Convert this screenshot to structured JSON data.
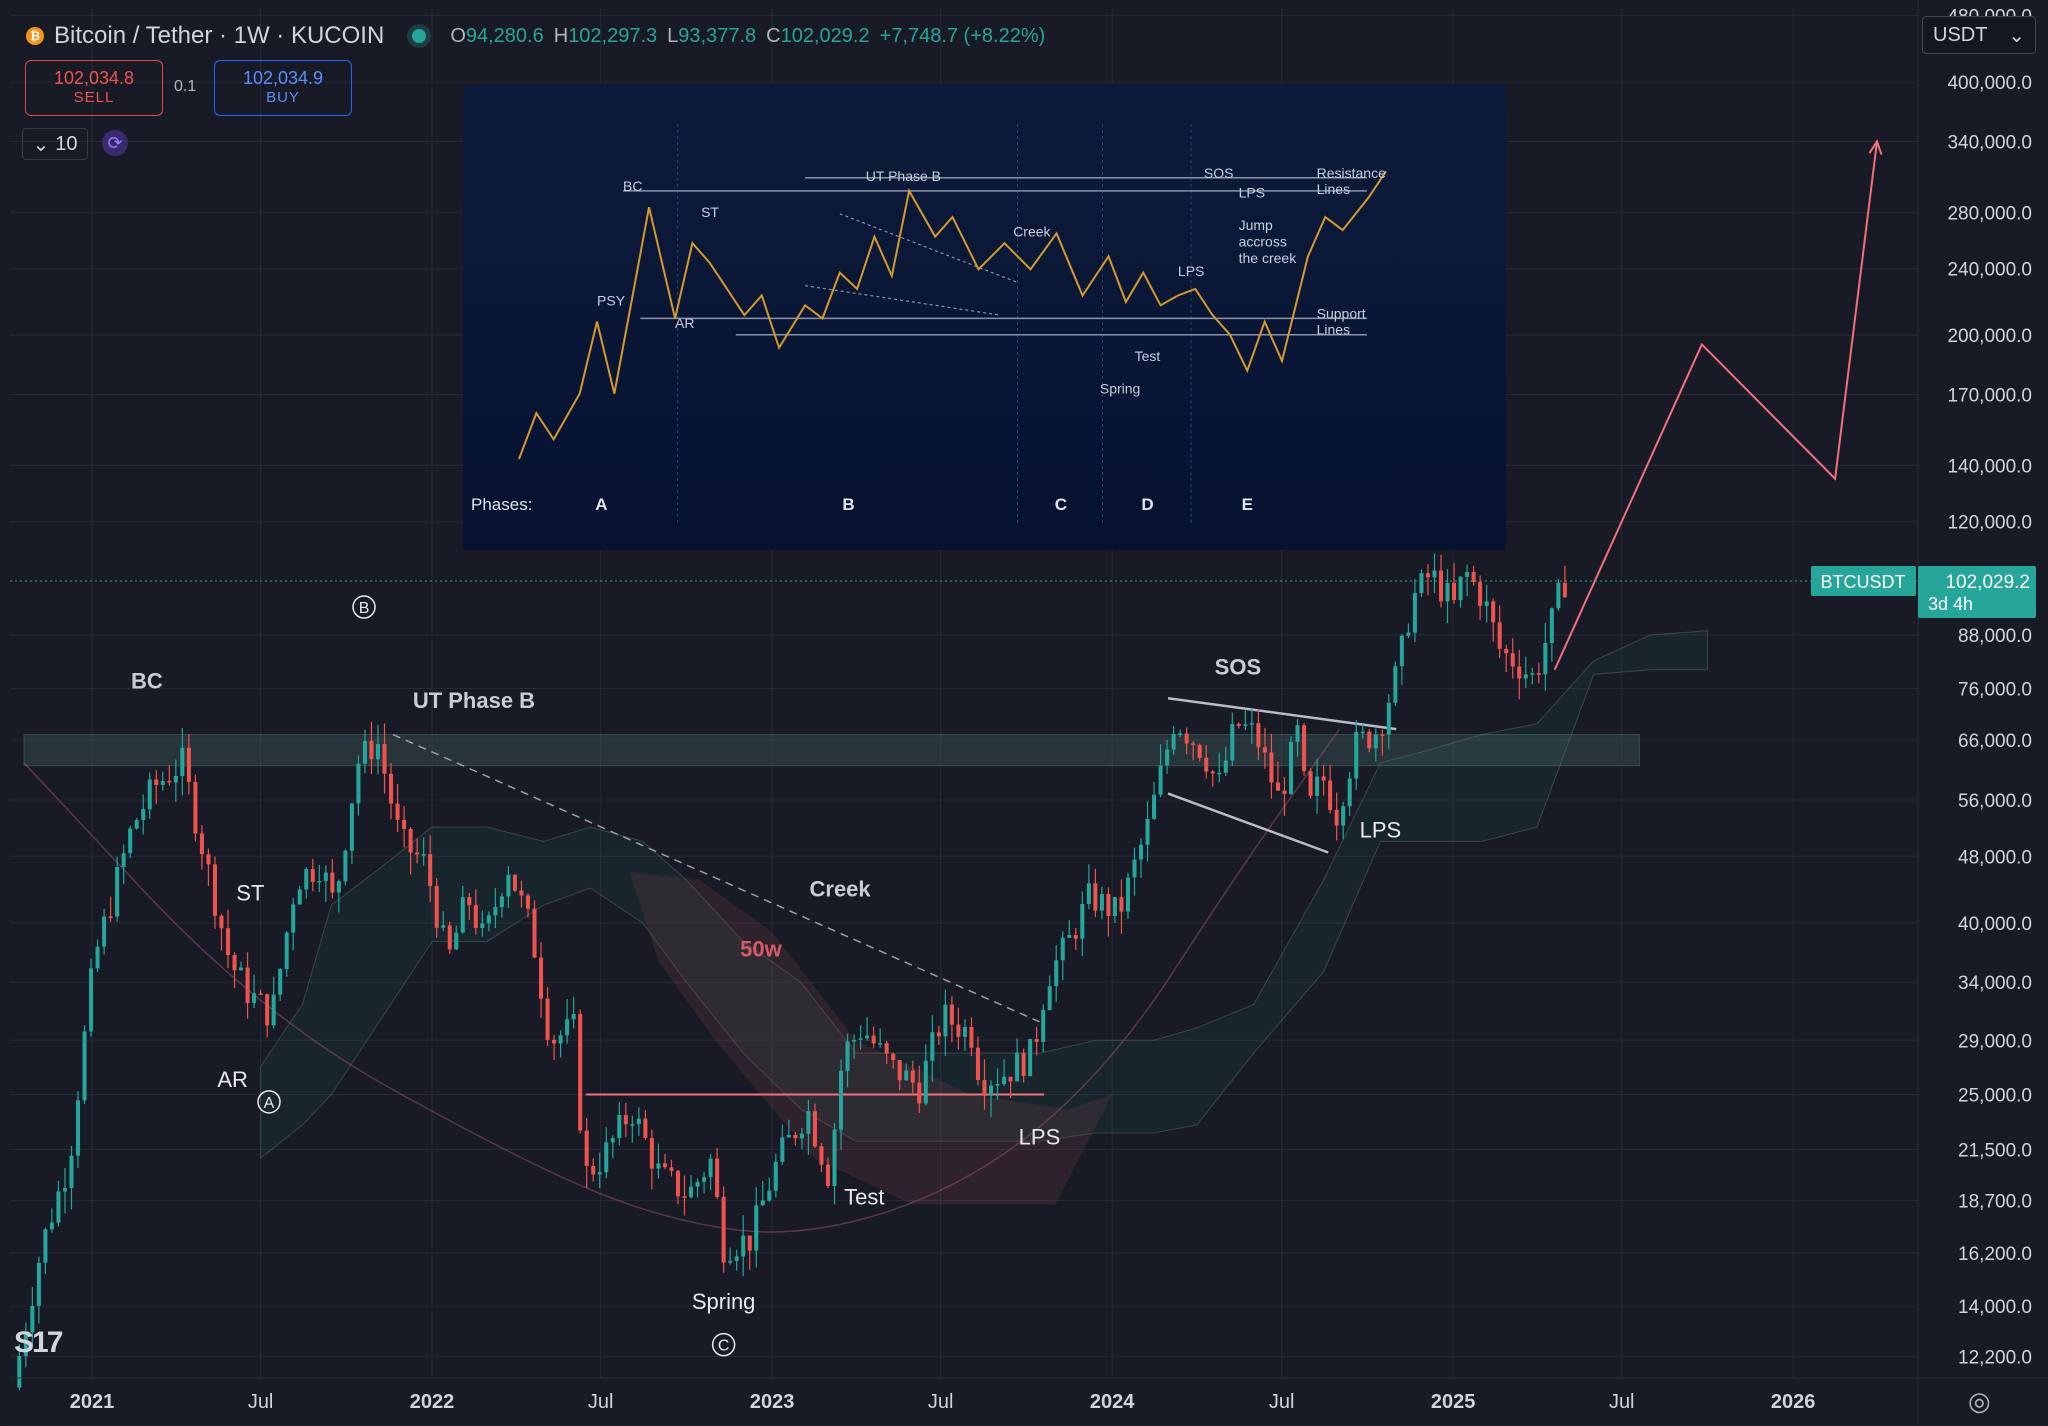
{
  "header": {
    "symbol_title": "Bitcoin / Tether · 1W · KUCOIN",
    "symbol_icon": "bitcoin-icon",
    "ohlc": [
      {
        "k": "O",
        "v": "94,280.6"
      },
      {
        "k": "H",
        "v": "102,297.3"
      },
      {
        "k": "L",
        "v": "93,377.8"
      },
      {
        "k": "C",
        "v": "102,029.2"
      }
    ],
    "change": "+7,748.7 (+8.22%)"
  },
  "trade": {
    "sell_price": "102,034.8",
    "sell_label": "SELL",
    "quantity": "0.1",
    "buy_price": "102,034.9",
    "buy_label": "BUY"
  },
  "toolbar": {
    "interval_value": "10",
    "interval_icon": "chevron-down-icon",
    "refresh_icon": "sync-icon"
  },
  "currency_select": {
    "value": "USDT",
    "icon": "chevron-down-icon"
  },
  "branding": {
    "logo_text": "S17"
  },
  "colors": {
    "up": "#26a69a",
    "down": "#ef5350",
    "background": "#181b25",
    "grid": "#262a36",
    "accent_projection": "#f07080"
  },
  "chart_data": [
    {
      "type": "candlestick",
      "symbol_label": "BTCUSDT",
      "last_price": "102,029.2",
      "countdown": "3d 4h",
      "y_scale": "log",
      "ylim": [
        11500,
        490000
      ],
      "xlim": [
        "2020-10-05",
        "2026-05-15"
      ],
      "y_ticks": [
        "480,000.0",
        "400,000.0",
        "340,000.0",
        "280,000.0",
        "240,000.0",
        "200,000.0",
        "170,000.0",
        "140,000.0",
        "120,000.0",
        "102,029.2",
        "88,000.0",
        "76,000.0",
        "66,000.0",
        "56,000.0",
        "48,000.0",
        "40,000.0",
        "34,000.0",
        "29,000.0",
        "25,000.0",
        "21,500.0",
        "18,700.0",
        "16,200.0",
        "14,000.0",
        "12,200.0"
      ],
      "x_ticks": [
        {
          "label": "2021",
          "date": "2021-01-01",
          "major": true
        },
        {
          "label": "Jul",
          "date": "2021-07-01",
          "major": false
        },
        {
          "label": "2022",
          "date": "2022-01-01",
          "major": true
        },
        {
          "label": "Jul",
          "date": "2022-07-01",
          "major": false
        },
        {
          "label": "2023",
          "date": "2023-01-01",
          "major": true
        },
        {
          "label": "Jul",
          "date": "2023-07-01",
          "major": false
        },
        {
          "label": "2024",
          "date": "2024-01-01",
          "major": true
        },
        {
          "label": "Jul",
          "date": "2024-07-01",
          "major": false
        },
        {
          "label": "2025",
          "date": "2025-01-01",
          "major": true
        },
        {
          "label": "Jul",
          "date": "2025-07-01",
          "major": false
        },
        {
          "label": "2026",
          "date": "2026-01-01",
          "major": true
        }
      ],
      "price_path": [
        [
          "2020-10-15",
          11200
        ],
        [
          "2020-11-15",
          16500
        ],
        [
          "2020-12-15",
          21000
        ],
        [
          "2021-01-10",
          36000
        ],
        [
          "2021-02-20",
          52000
        ],
        [
          "2021-03-15",
          58000
        ],
        [
          "2021-04-15",
          62000
        ],
        [
          "2021-05-15",
          45000
        ],
        [
          "2021-06-05",
          36000
        ],
        [
          "2021-06-25",
          33000
        ],
        [
          "2021-07-20",
          31000
        ],
        [
          "2021-08-15",
          45000
        ],
        [
          "2021-09-10",
          47000
        ],
        [
          "2021-09-25",
          42000
        ],
        [
          "2021-10-20",
          62000
        ],
        [
          "2021-11-10",
          66000
        ],
        [
          "2021-12-05",
          50000
        ],
        [
          "2022-01-01",
          47000
        ],
        [
          "2022-01-25",
          36000
        ],
        [
          "2022-02-15",
          43000
        ],
        [
          "2022-03-05",
          38000
        ],
        [
          "2022-03-30",
          47000
        ],
        [
          "2022-04-25",
          39000
        ],
        [
          "2022-05-15",
          29000
        ],
        [
          "2022-06-10",
          30000
        ],
        [
          "2022-06-20",
          20000
        ],
        [
          "2022-07-10",
          21000
        ],
        [
          "2022-08-10",
          24000
        ],
        [
          "2022-09-10",
          20000
        ],
        [
          "2022-10-10",
          19000
        ],
        [
          "2022-11-05",
          21000
        ],
        [
          "2022-11-15",
          16500
        ],
        [
          "2022-12-15",
          16800
        ],
        [
          "2023-01-15",
          21000
        ],
        [
          "2023-02-15",
          24000
        ],
        [
          "2023-03-10",
          20000
        ],
        [
          "2023-03-25",
          28000
        ],
        [
          "2023-04-15",
          30000
        ],
        [
          "2023-05-15",
          27000
        ],
        [
          "2023-06-15",
          25500
        ],
        [
          "2023-07-10",
          31000
        ],
        [
          "2023-08-10",
          29500
        ],
        [
          "2023-08-20",
          26000
        ],
        [
          "2023-09-15",
          26500
        ],
        [
          "2023-10-15",
          28000
        ],
        [
          "2023-10-30",
          34500
        ],
        [
          "2023-11-20",
          37500
        ],
        [
          "2023-12-15",
          43000
        ],
        [
          "2024-01-15",
          41000
        ],
        [
          "2024-02-15",
          52000
        ],
        [
          "2024-03-15",
          70000
        ],
        [
          "2024-04-15",
          64000
        ],
        [
          "2024-05-01",
          58000
        ],
        [
          "2024-05-20",
          69000
        ],
        [
          "2024-06-10",
          67000
        ],
        [
          "2024-07-05",
          56000
        ],
        [
          "2024-07-25",
          67000
        ],
        [
          "2024-08-05",
          54000
        ],
        [
          "2024-08-20",
          60000
        ],
        [
          "2024-09-05",
          54000
        ],
        [
          "2024-09-25",
          65000
        ],
        [
          "2024-10-20",
          68000
        ],
        [
          "2024-11-10",
          80000
        ],
        [
          "2024-11-25",
          97000
        ],
        [
          "2024-12-15",
          104000
        ],
        [
          "2025-01-10",
          95000
        ],
        [
          "2025-01-20",
          105000
        ],
        [
          "2025-02-10",
          97000
        ],
        [
          "2025-02-28",
          84000
        ],
        [
          "2025-03-15",
          82000
        ],
        [
          "2025-04-05",
          78000
        ],
        [
          "2025-04-15",
          85000
        ],
        [
          "2025-04-28",
          94000
        ],
        [
          "2025-05-05",
          102029
        ]
      ],
      "cloud_upper": [
        [
          "2021-07-01",
          27000
        ],
        [
          "2021-08-15",
          32000
        ],
        [
          "2021-09-15",
          42000
        ],
        [
          "2021-11-01",
          46000
        ],
        [
          "2022-01-01",
          52000
        ],
        [
          "2022-03-01",
          52000
        ],
        [
          "2022-05-01",
          50000
        ],
        [
          "2022-06-20",
          52000
        ],
        [
          "2022-08-15",
          50000
        ],
        [
          "2022-10-01",
          45000
        ],
        [
          "2022-12-01",
          38000
        ],
        [
          "2023-02-01",
          34000
        ],
        [
          "2023-04-01",
          28000
        ],
        [
          "2023-06-01",
          28000
        ],
        [
          "2023-08-01",
          28000
        ],
        [
          "2023-10-15",
          28000
        ],
        [
          "2023-12-15",
          29000
        ],
        [
          "2024-02-15",
          29000
        ],
        [
          "2024-04-01",
          30000
        ],
        [
          "2024-06-01",
          32000
        ],
        [
          "2024-08-15",
          45000
        ],
        [
          "2024-10-15",
          62000
        ],
        [
          "2024-12-01",
          64000
        ],
        [
          "2025-02-01",
          67000
        ],
        [
          "2025-04-01",
          69000
        ],
        [
          "2025-06-01",
          82000
        ],
        [
          "2025-08-01",
          88000
        ],
        [
          "2025-10-01",
          89000
        ]
      ],
      "cloud_lower": [
        [
          "2021-07-01",
          21000
        ],
        [
          "2021-08-15",
          23000
        ],
        [
          "2021-09-15",
          25000
        ],
        [
          "2021-11-01",
          30000
        ],
        [
          "2022-01-01",
          38000
        ],
        [
          "2022-03-01",
          38000
        ],
        [
          "2022-05-01",
          42000
        ],
        [
          "2022-06-20",
          44000
        ],
        [
          "2022-08-15",
          40000
        ],
        [
          "2022-10-01",
          34000
        ],
        [
          "2022-12-01",
          28000
        ],
        [
          "2023-02-01",
          24000
        ],
        [
          "2023-04-01",
          22000
        ],
        [
          "2023-06-01",
          22000
        ],
        [
          "2023-08-01",
          22000
        ],
        [
          "2023-10-15",
          22000
        ],
        [
          "2023-12-15",
          22500
        ],
        [
          "2024-02-15",
          22500
        ],
        [
          "2024-04-01",
          23000
        ],
        [
          "2024-06-01",
          28000
        ],
        [
          "2024-08-15",
          35000
        ],
        [
          "2024-10-15",
          50000
        ],
        [
          "2024-12-01",
          50000
        ],
        [
          "2025-02-01",
          50000
        ],
        [
          "2025-04-01",
          52000
        ],
        [
          "2025-06-01",
          79000
        ],
        [
          "2025-08-01",
          80000
        ],
        [
          "2025-10-01",
          80000
        ]
      ],
      "resistance_zone": {
        "from_date": "2020-10-20",
        "to_date": "2025-07-20",
        "low": 61500,
        "high": 67000
      },
      "support_line": {
        "from": [
          "2022-06-15",
          25000
        ],
        "to": [
          "2023-10-20",
          25000
        ]
      },
      "creek_line": {
        "from": [
          "2021-11-20",
          67000
        ],
        "to": [
          "2023-10-15",
          30500
        ]
      },
      "bowl_curve": [
        [
          "2020-10-20",
          62000
        ],
        [
          "2021-07-01",
          31000
        ],
        [
          "2022-04-01",
          21000
        ],
        [
          "2022-09-01",
          17800
        ],
        [
          "2023-02-01",
          16800
        ],
        [
          "2023-08-01",
          19500
        ],
        [
          "2024-01-01",
          27000
        ],
        [
          "2024-05-15",
          46000
        ],
        [
          "2024-09-01",
          68000
        ]
      ],
      "wedge_upper": {
        "from": [
          "2024-03-01",
          74000
        ],
        "to": [
          "2024-11-01",
          68000
        ]
      },
      "wedge_lower": {
        "from": [
          "2024-03-01",
          57000
        ],
        "to": [
          "2024-08-20",
          48500
        ]
      },
      "projection": [
        [
          "2025-04-20",
          80000
        ],
        [
          "2025-09-25",
          195000
        ],
        [
          "2026-02-15",
          135000
        ],
        [
          "2026-04-01",
          340000
        ]
      ],
      "fifty_week_zone": [
        [
          "2022-08-01",
          46000
        ],
        [
          "2022-10-15",
          45000
        ],
        [
          "2023-01-01",
          39000
        ],
        [
          "2023-04-01",
          29000
        ],
        [
          "2023-08-01",
          25000
        ],
        [
          "2023-11-15",
          24000
        ],
        [
          "2024-01-01",
          25000
        ],
        [
          "2023-11-01",
          18500
        ],
        [
          "2023-06-01",
          18500
        ],
        [
          "2023-02-15",
          21000
        ],
        [
          "2022-11-01",
          29000
        ],
        [
          "2022-09-01",
          36000
        ]
      ],
      "annotations": [
        {
          "text": "BC",
          "date": "2021-03-01",
          "value": 76000,
          "weight": "bold"
        },
        {
          "text": "UT Phase B",
          "date": "2022-02-15",
          "value": 72000,
          "weight": "bold"
        },
        {
          "text": "ST",
          "date": "2021-06-20",
          "value": 42500,
          "weight": "normal"
        },
        {
          "text": "AR",
          "date": "2021-06-01",
          "value": 25500,
          "weight": "normal"
        },
        {
          "text": "Creek",
          "date": "2023-03-15",
          "value": 43000,
          "weight": "bold"
        },
        {
          "text": "50w",
          "date": "2022-12-20",
          "value": 36500,
          "weight": "bold"
        },
        {
          "text": "Test",
          "date": "2023-04-10",
          "value": 18500,
          "weight": "normal"
        },
        {
          "text": "Spring",
          "date": "2022-11-10",
          "value": 13900,
          "weight": "normal"
        },
        {
          "text": "LPS",
          "date": "2023-10-15",
          "value": 21800,
          "weight": "normal"
        },
        {
          "text": "SOS",
          "date": "2024-05-15",
          "value": 79000,
          "weight": "bold"
        },
        {
          "text": "LPS",
          "date": "2024-10-15",
          "value": 50500,
          "weight": "normal"
        }
      ],
      "circled_markers": [
        {
          "text": "B",
          "date": "2021-10-20",
          "value": 95000
        },
        {
          "text": "A",
          "date": "2021-07-10",
          "value": 24500
        },
        {
          "text": "C",
          "date": "2022-11-10",
          "value": 12600
        }
      ]
    },
    {
      "type": "line",
      "phases_label": "Phases:",
      "phases": [
        "A",
        "B",
        "C",
        "D",
        "E"
      ],
      "labels": [
        {
          "text": "PSY",
          "x": 0.09,
          "y": 0.47
        },
        {
          "text": "BC",
          "x": 0.12,
          "y": 0.82
        },
        {
          "text": "AR",
          "x": 0.18,
          "y": 0.4
        },
        {
          "text": "ST",
          "x": 0.21,
          "y": 0.74
        },
        {
          "text": "UT Phase B",
          "x": 0.4,
          "y": 0.85
        },
        {
          "text": "Creek",
          "x": 0.57,
          "y": 0.68
        },
        {
          "text": "Spring",
          "x": 0.67,
          "y": 0.2
        },
        {
          "text": "Test",
          "x": 0.71,
          "y": 0.3
        },
        {
          "text": "LPS",
          "x": 0.76,
          "y": 0.56
        },
        {
          "text": "SOS",
          "x": 0.79,
          "y": 0.86
        },
        {
          "text": "LPS",
          "x": 0.83,
          "y": 0.8
        },
        {
          "text": "Jump",
          "x": 0.83,
          "y": 0.7
        },
        {
          "text": "accross",
          "x": 0.83,
          "y": 0.65
        },
        {
          "text": "the creek",
          "x": 0.83,
          "y": 0.6
        },
        {
          "text": "Resistance",
          "x": 0.92,
          "y": 0.86
        },
        {
          "text": "Lines",
          "x": 0.92,
          "y": 0.81
        },
        {
          "text": "Support",
          "x": 0.92,
          "y": 0.43
        },
        {
          "text": "Lines",
          "x": 0.92,
          "y": 0.38
        }
      ],
      "path": [
        [
          0.0,
          0.0
        ],
        [
          0.02,
          0.14
        ],
        [
          0.04,
          0.06
        ],
        [
          0.07,
          0.2
        ],
        [
          0.09,
          0.42
        ],
        [
          0.11,
          0.2
        ],
        [
          0.15,
          0.77
        ],
        [
          0.18,
          0.43
        ],
        [
          0.2,
          0.66
        ],
        [
          0.22,
          0.6
        ],
        [
          0.24,
          0.52
        ],
        [
          0.26,
          0.44
        ],
        [
          0.28,
          0.5
        ],
        [
          0.3,
          0.34
        ],
        [
          0.33,
          0.47
        ],
        [
          0.35,
          0.43
        ],
        [
          0.37,
          0.57
        ],
        [
          0.39,
          0.52
        ],
        [
          0.41,
          0.68
        ],
        [
          0.43,
          0.56
        ],
        [
          0.45,
          0.82
        ],
        [
          0.48,
          0.68
        ],
        [
          0.5,
          0.74
        ],
        [
          0.53,
          0.58
        ],
        [
          0.56,
          0.66
        ],
        [
          0.59,
          0.58
        ],
        [
          0.62,
          0.69
        ],
        [
          0.65,
          0.5
        ],
        [
          0.68,
          0.62
        ],
        [
          0.7,
          0.48
        ],
        [
          0.72,
          0.57
        ],
        [
          0.74,
          0.47
        ],
        [
          0.76,
          0.5
        ],
        [
          0.78,
          0.52
        ],
        [
          0.8,
          0.44
        ],
        [
          0.82,
          0.38
        ],
        [
          0.84,
          0.27
        ],
        [
          0.86,
          0.42
        ],
        [
          0.88,
          0.3
        ],
        [
          0.91,
          0.62
        ],
        [
          0.93,
          0.74
        ],
        [
          0.95,
          0.7
        ],
        [
          0.98,
          0.8
        ],
        [
          1.0,
          0.88
        ]
      ]
    }
  ]
}
